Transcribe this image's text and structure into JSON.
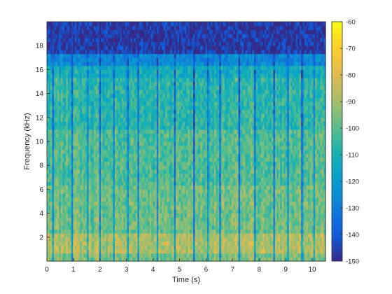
{
  "chart_data": {
    "type": "heatmap",
    "title": "",
    "xlabel": "Time (s)",
    "ylabel": "Frequency (kHz)",
    "xlim": [
      0,
      10.5
    ],
    "ylim": [
      0,
      20
    ],
    "xticks": [
      0,
      1,
      2,
      3,
      4,
      5,
      6,
      7,
      8,
      9,
      10
    ],
    "yticks": [
      2,
      4,
      6,
      8,
      10,
      12,
      14,
      16,
      18
    ],
    "colorbar": {
      "clim": [
        -150,
        -60
      ],
      "ticks": [
        -60,
        -70,
        -80,
        -90,
        -100,
        -110,
        -120,
        -130,
        -140,
        -150
      ],
      "colormap": "parula"
    },
    "grid": false,
    "n_time_bins": 160,
    "n_freq_bins": 60,
    "seed": 7,
    "frequency_bands_db": [
      {
        "from_khz": 0,
        "to_khz": 0.6,
        "level_db": -95
      },
      {
        "from_khz": 0.6,
        "to_khz": 2.5,
        "level_db": -88
      },
      {
        "from_khz": 2.5,
        "to_khz": 6.5,
        "level_db": -97
      },
      {
        "from_khz": 6.5,
        "to_khz": 11,
        "level_db": -101
      },
      {
        "from_khz": 11,
        "to_khz": 15.3,
        "level_db": -107
      },
      {
        "from_khz": 15.3,
        "to_khz": 16.3,
        "level_db": -113
      },
      {
        "from_khz": 16.3,
        "to_khz": 17.5,
        "level_db": -126
      },
      {
        "from_khz": 17.5,
        "to_khz": 20,
        "level_db": -147
      }
    ],
    "quiet_frames_s": [
      0.25,
      0.95,
      1.55,
      2.0,
      2.55,
      3.05,
      3.45,
      4.15,
      4.8,
      5.55,
      6.05,
      6.55,
      7.25,
      7.85,
      8.55,
      9.1,
      9.6,
      10.05
    ]
  }
}
